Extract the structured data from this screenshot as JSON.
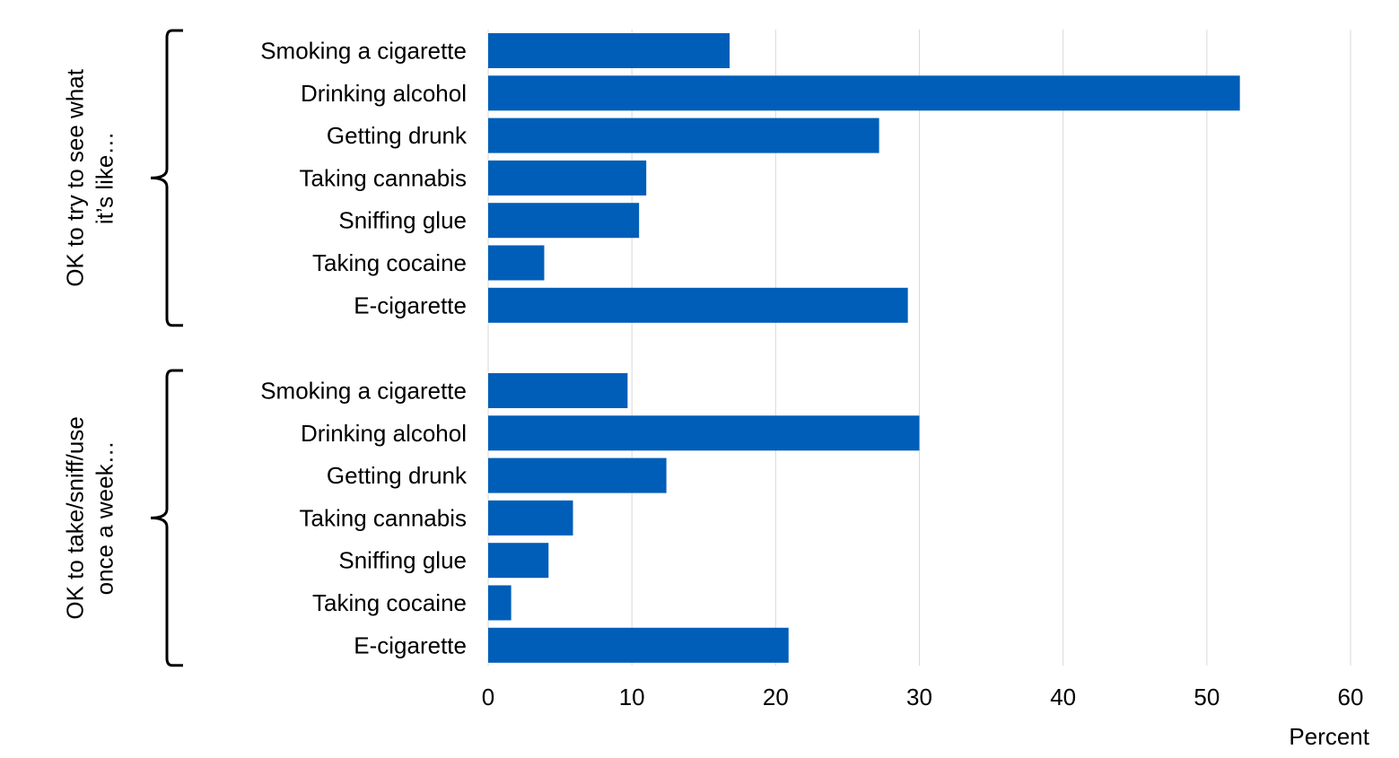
{
  "chart_data": {
    "type": "bar",
    "orientation": "horizontal",
    "xlabel": "Percent",
    "xlim": [
      0,
      60
    ],
    "xticks": [
      0,
      10,
      20,
      30,
      40,
      50,
      60
    ],
    "grid": "vertical",
    "bar_color": "#005EB8",
    "groups": [
      {
        "label": [
          "OK to try to see what",
          "it’s like…"
        ],
        "categories": [
          "Smoking a cigarette",
          "Drinking alcohol",
          "Getting drunk",
          "Taking cannabis",
          "Sniffing glue",
          "Taking cocaine",
          "E-cigarette"
        ],
        "values": [
          16.8,
          52.3,
          27.2,
          11.0,
          10.5,
          3.9,
          29.2
        ]
      },
      {
        "label": [
          "OK to take/sniff/use",
          "once a week…"
        ],
        "categories": [
          "Smoking a cigarette",
          "Drinking alcohol",
          "Getting drunk",
          "Taking cannabis",
          "Sniffing glue",
          "Taking cocaine",
          "E-cigarette"
        ],
        "values": [
          9.7,
          30.0,
          12.4,
          5.9,
          4.2,
          1.6,
          20.9
        ]
      }
    ]
  }
}
